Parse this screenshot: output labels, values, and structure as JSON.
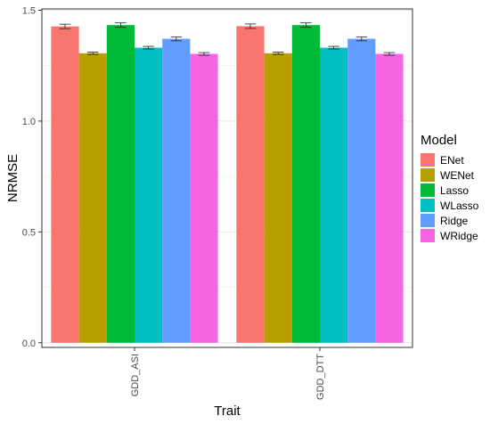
{
  "chart_data": {
    "type": "bar",
    "categories": [
      "GDD_ASI",
      "GDD_DTT"
    ],
    "xlabel": "Trait",
    "ylabel": "NRMSE",
    "ylim": [
      0,
      1.5
    ],
    "yticks": [
      0.0,
      0.5,
      1.0,
      1.5
    ],
    "ytick_labels": [
      "0.0",
      "0.5",
      "1.0",
      "1.5"
    ],
    "grid": true,
    "error_bars": true,
    "legend": {
      "title": "Model",
      "position": "right"
    },
    "series": [
      {
        "name": "ENet",
        "color": "#F8766D",
        "values": [
          1.427,
          1.428
        ],
        "errors": [
          0.01,
          0.01
        ]
      },
      {
        "name": "WENet",
        "color": "#B79F00",
        "values": [
          1.306,
          1.306
        ],
        "errors": [
          0.005,
          0.005
        ]
      },
      {
        "name": "Lasso",
        "color": "#00BA38",
        "values": [
          1.433,
          1.433
        ],
        "errors": [
          0.01,
          0.01
        ]
      },
      {
        "name": "WLasso",
        "color": "#00BFC4",
        "values": [
          1.331,
          1.331
        ],
        "errors": [
          0.006,
          0.006
        ]
      },
      {
        "name": "Ridge",
        "color": "#619CFF",
        "values": [
          1.371,
          1.371
        ],
        "errors": [
          0.009,
          0.009
        ]
      },
      {
        "name": "WRidge",
        "color": "#F564E3",
        "values": [
          1.303,
          1.303
        ],
        "errors": [
          0.006,
          0.006
        ]
      }
    ]
  }
}
